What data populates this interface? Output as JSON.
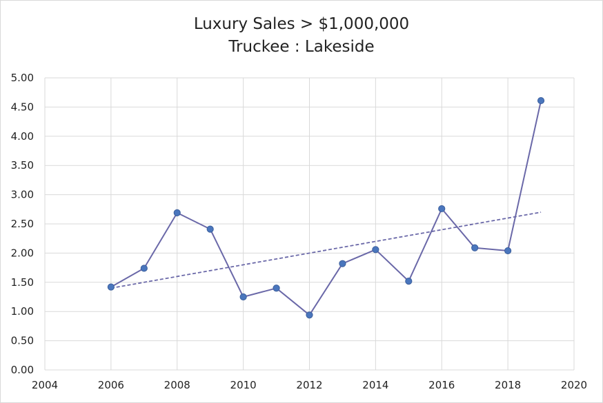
{
  "chart_data": {
    "type": "scatter",
    "title": "Luxury Sales > $1,000,000",
    "subtitle": "Truckee : Lakeside",
    "xlabel": "",
    "ylabel": "",
    "xlim": [
      2004,
      2020
    ],
    "ylim": [
      0,
      5
    ],
    "x_ticks": [
      "2004",
      "2006",
      "2008",
      "2010",
      "2012",
      "2014",
      "2016",
      "2018",
      "2020"
    ],
    "y_ticks": [
      "0.00",
      "0.50",
      "1.00",
      "1.50",
      "2.00",
      "2.50",
      "3.00",
      "3.50",
      "4.00",
      "4.50",
      "5.00"
    ],
    "grid": true,
    "legend": "none",
    "series": [
      {
        "style": "line-with-markers",
        "color": "#6a68a8",
        "marker_color": "#4a76bd",
        "x": [
          2006,
          2007,
          2008,
          2009,
          2010,
          2011,
          2012,
          2013,
          2014,
          2015,
          2016,
          2017,
          2018,
          2019
        ],
        "y": [
          1.42,
          1.74,
          2.69,
          2.41,
          1.25,
          1.4,
          0.94,
          1.82,
          2.06,
          1.52,
          2.76,
          2.09,
          2.04,
          4.61
        ]
      }
    ],
    "trendline": {
      "style": "dashed",
      "kind": "linear",
      "color": "#6a68a8",
      "x": [
        2006,
        2019
      ],
      "y": [
        1.4,
        2.7
      ]
    }
  }
}
